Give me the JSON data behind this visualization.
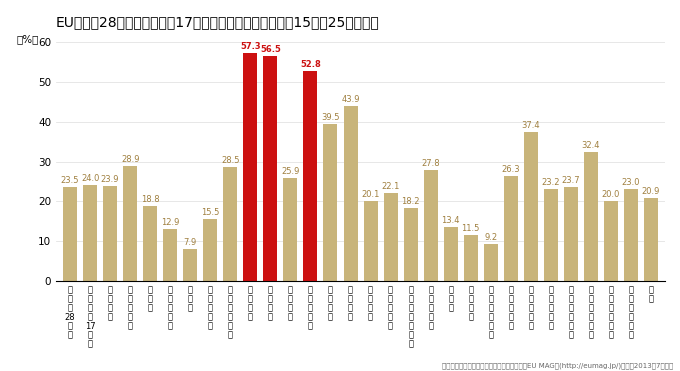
{
  "title": "EU加盟国28カ国、ユーロ圏17カ国および各国の失業率（15歳～25歳未満）",
  "ylabel": "（%）",
  "ylim": [
    0,
    62
  ],
  "yticks": [
    0,
    10,
    20,
    30,
    40,
    50,
    60
  ],
  "categories": [
    "加\n盟\n国\n28\nカ\n国",
    "ユ\nー\nロ\n圏\n17\nカ\n国",
    "ベ\nル\nギ\nー",
    "ブ\nル\nガ\nリ\nア",
    "チ\nェ\nコ",
    "デ\nン\nマ\nー\nク",
    "ド\nイ\nツ",
    "エ\nス\nト\nニ\nア",
    "ア\nイ\nル\nラ\nン\nド",
    "ギ\nリ\nシ\nャ",
    "ス\nペ\nイ\nン",
    "フ\nラ\nン\nス",
    "ク\nロ\nア\nチ\nア",
    "イ\nタ\nリ\nア",
    "キ\nプ\nロ\nス",
    "ラ\nト\nビ\nア",
    "リ\nト\nア\nニ\nア",
    "ル\nク\nセ\nン\nブ\nル\nク",
    "ハ\nン\nガ\nリ\nー",
    "マ\nル\nタ",
    "オ\nラ\nン\nダ",
    "オ\nー\nス\nト\nリ\nア",
    "ポ\nー\nラ\nン\nド",
    "ポ\nル\nト\nガ\nル",
    "ル\nー\nマ\nニ\nア",
    "ス\nロ\nヴ\nェ\nニ\nア",
    "ス\nロ\nヴ\nァ\nキ\nア",
    "フ\nィ\nン\nラ\nン\nド",
    "ス\nウ\nェ\nー\nデ\nン",
    "英\n国"
  ],
  "values": [
    23.5,
    24.0,
    23.9,
    28.9,
    18.8,
    12.9,
    7.9,
    15.5,
    28.5,
    57.3,
    56.5,
    25.9,
    52.8,
    39.5,
    43.9,
    20.1,
    22.1,
    18.2,
    27.8,
    13.4,
    11.5,
    9.2,
    26.3,
    37.4,
    23.2,
    23.7,
    32.4,
    20.0,
    23.0,
    20.9
  ],
  "bar_colors_key": [
    "tan",
    "tan",
    "tan",
    "tan",
    "tan",
    "tan",
    "tan",
    "tan",
    "tan",
    "red",
    "red",
    "tan",
    "red",
    "tan",
    "tan",
    "tan",
    "tan",
    "tan",
    "tan",
    "tan",
    "tan",
    "tan",
    "tan",
    "tan",
    "tan",
    "tan",
    "tan",
    "tan",
    "tan",
    "tan"
  ],
  "tan_color": "#C8B47A",
  "red_color": "#CC1111",
  "bg_color": "#FFFFFF",
  "value_color_tan": "#A08040",
  "value_color_red": "#CC1111",
  "source_text": "出典：駐日欧州連合代表部のウェブサイド「EU MAG」(http://eumag.jp/)より、2013年7月時点",
  "title_fontsize": 10,
  "tick_fontsize": 6,
  "value_fontsize": 6
}
